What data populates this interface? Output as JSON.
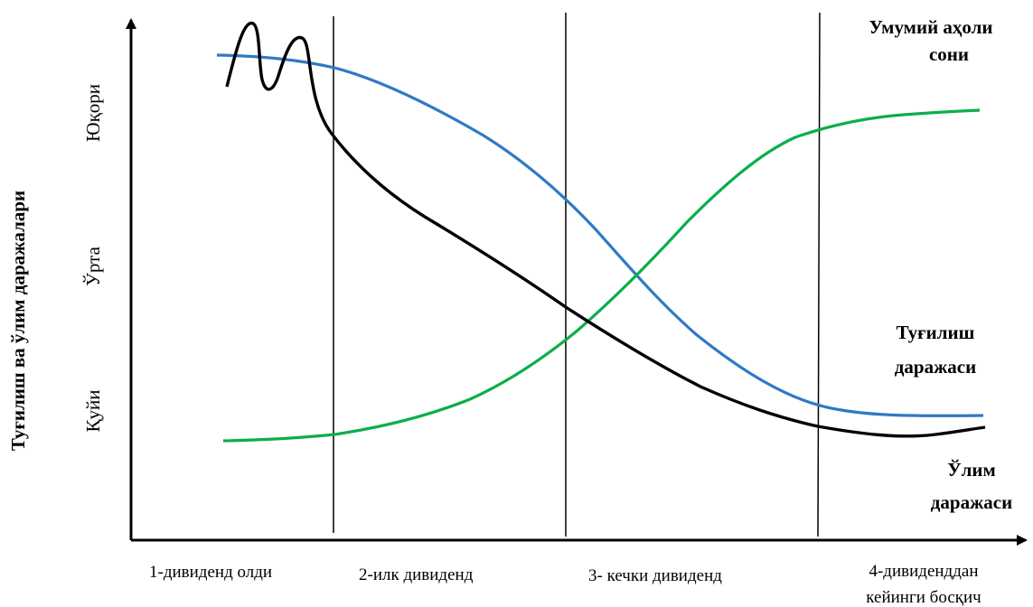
{
  "chart_data": {
    "type": "line",
    "ylabel": "Туғилиш ва ўлим даражалари",
    "y_levels": [
      "Юқори",
      "Ўрта",
      "Қуйи"
    ],
    "stages": [
      {
        "label": "1-дивиденд олди"
      },
      {
        "label": "2-илк дивиденд"
      },
      {
        "label": "3- кечки дивиденд"
      },
      {
        "label_lines": [
          "4-дивиденддан",
          "кейинги босқич"
        ]
      }
    ],
    "series": [
      {
        "key": "population",
        "label_lines": [
          "Умумий аҳоли",
          "сони"
        ],
        "color": "#2f7ac4"
      },
      {
        "key": "birth",
        "label_lines": [
          "Туғилиш",
          "даражаси"
        ],
        "color": "#0cae4b"
      },
      {
        "key": "death",
        "label_lines": [
          "Ўлим",
          "даражаси"
        ],
        "color": "#000000"
      }
    ],
    "grid": false
  }
}
